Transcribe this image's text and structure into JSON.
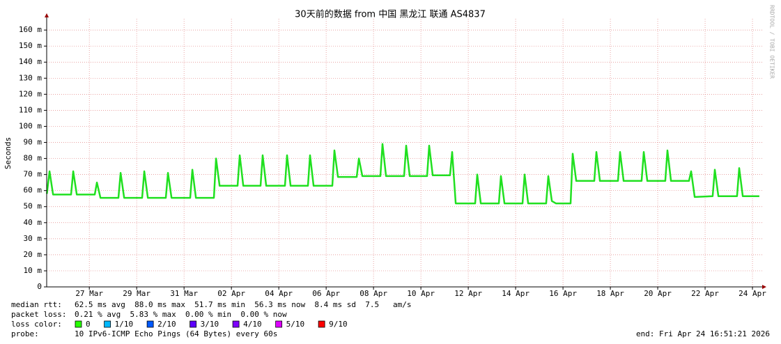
{
  "chart_data": {
    "type": "line",
    "title": "30天前的数据 from 中国 黑龙江 联通 AS4837",
    "y_label": "Seconds",
    "watermark": "RRDTOOL / TOBI OETIKER",
    "color": "#20e020",
    "grid": true,
    "xlim": [
      84.2,
      114.44
    ],
    "ylim": [
      0,
      0.167
    ],
    "xticks": [
      {
        "value": 86,
        "label": "27 Mar"
      },
      {
        "value": 88,
        "label": "29 Mar"
      },
      {
        "value": 90,
        "label": "31 Mar"
      },
      {
        "value": 92,
        "label": "02 Apr"
      },
      {
        "value": 94,
        "label": "04 Apr"
      },
      {
        "value": 96,
        "label": "06 Apr"
      },
      {
        "value": 98,
        "label": "08 Apr"
      },
      {
        "value": 100,
        "label": "10 Apr"
      },
      {
        "value": 102,
        "label": "12 Apr"
      },
      {
        "value": 104,
        "label": "14 Apr"
      },
      {
        "value": 106,
        "label": "16 Apr"
      },
      {
        "value": 108,
        "label": "18 Apr"
      },
      {
        "value": 110,
        "label": "20 Apr"
      },
      {
        "value": 112,
        "label": "22 Apr"
      },
      {
        "value": 114,
        "label": "24 Apr"
      }
    ],
    "yticks": [
      0,
      {
        "value": 0.01,
        "label": "10 m"
      },
      {
        "value": 0.02,
        "label": "20 m"
      },
      {
        "value": 0.03,
        "label": "30 m"
      },
      {
        "value": 0.04,
        "label": "40 m"
      },
      {
        "value": 0.05,
        "label": "50 m"
      },
      {
        "value": 0.06,
        "label": "60 m"
      },
      {
        "value": 0.07,
        "label": "70 m"
      },
      {
        "value": 0.08,
        "label": "80 m"
      },
      {
        "value": 0.09,
        "label": "90 m"
      },
      {
        "value": 0.1,
        "label": "100 m"
      },
      {
        "value": 0.11,
        "label": "110 m"
      },
      {
        "value": 0.12,
        "label": "120 m"
      },
      {
        "value": 0.13,
        "label": "130 m"
      },
      {
        "value": 0.14,
        "label": "140 m"
      },
      {
        "value": 0.15,
        "label": "150 m"
      },
      {
        "value": 0.16,
        "label": "160 m"
      }
    ],
    "x": [
      84.21,
      84.32,
      84.47,
      85.23,
      85.32,
      85.47,
      86.23,
      86.32,
      86.47,
      87.23,
      87.32,
      87.47,
      88.23,
      88.32,
      88.47,
      89.23,
      89.32,
      89.47,
      90.26,
      90.35,
      90.5,
      91.26,
      91.35,
      91.5,
      92.26,
      92.35,
      92.5,
      93.23,
      93.32,
      93.47,
      94.26,
      94.35,
      94.5,
      95.23,
      95.32,
      95.47,
      96.26,
      96.35,
      96.5,
      97.29,
      97.38,
      97.53,
      98.29,
      98.38,
      98.53,
      99.29,
      99.38,
      99.53,
      100.26,
      100.35,
      100.5,
      101.23,
      101.32,
      101.47,
      102.29,
      102.38,
      102.53,
      103.29,
      103.38,
      103.53,
      104.29,
      104.38,
      104.53,
      105.29,
      105.38,
      105.53,
      105.7,
      106.32,
      106.41,
      106.56,
      107.32,
      107.41,
      107.56,
      108.32,
      108.41,
      108.56,
      109.32,
      109.41,
      109.56,
      110.32,
      110.41,
      110.56,
      111.32,
      111.41,
      111.56,
      112.32,
      112.41,
      112.56,
      113.35,
      113.44,
      113.59,
      114.29
    ],
    "values": [
      0.058,
      0.072,
      0.0575,
      0.0575,
      0.072,
      0.0575,
      0.0575,
      0.065,
      0.0555,
      0.0555,
      0.071,
      0.0555,
      0.0555,
      0.072,
      0.0555,
      0.0555,
      0.071,
      0.0555,
      0.0555,
      0.073,
      0.0555,
      0.0555,
      0.08,
      0.063,
      0.063,
      0.082,
      0.063,
      0.063,
      0.082,
      0.063,
      0.063,
      0.082,
      0.063,
      0.063,
      0.082,
      0.063,
      0.063,
      0.085,
      0.0685,
      0.0685,
      0.08,
      0.069,
      0.069,
      0.089,
      0.069,
      0.069,
      0.088,
      0.069,
      0.069,
      0.088,
      0.0695,
      0.0695,
      0.084,
      0.052,
      0.052,
      0.07,
      0.052,
      0.052,
      0.069,
      0.052,
      0.052,
      0.07,
      0.052,
      0.052,
      0.069,
      0.0535,
      0.052,
      0.052,
      0.083,
      0.066,
      0.066,
      0.084,
      0.066,
      0.066,
      0.084,
      0.066,
      0.066,
      0.084,
      0.066,
      0.066,
      0.085,
      0.066,
      0.066,
      0.072,
      0.056,
      0.0565,
      0.073,
      0.0565,
      0.0565,
      0.074,
      0.0565,
      0.0565
    ],
    "stats": [
      {
        "label": "median rtt:",
        "text": "62.5 ms avg  88.0 ms max  51.7 ms min  56.3 ms now  8.4 ms sd  7.5   am/s"
      },
      {
        "label": "packet loss:",
        "text": "0.21 % avg  5.83 % max  0.00 % min  0.00 % now"
      }
    ],
    "loss_label": "loss color:",
    "loss_legend": [
      {
        "label": "0",
        "color": "#26ff00"
      },
      {
        "label": "1/10",
        "color": "#00b8ff"
      },
      {
        "label": "2/10",
        "color": "#0059ff"
      },
      {
        "label": "3/10",
        "color": "#5e00ff"
      },
      {
        "label": "4/10",
        "color": "#7e00ff"
      },
      {
        "label": "5/10",
        "color": "#dd00ff"
      },
      {
        "label": "9/10",
        "color": "#ff0000"
      }
    ],
    "probe_label": "probe:",
    "probe": "10 IPv6-ICMP Echo Pings (64 Bytes) every 60s",
    "end": "end: Fri Apr 24 16:51:21 2026"
  }
}
